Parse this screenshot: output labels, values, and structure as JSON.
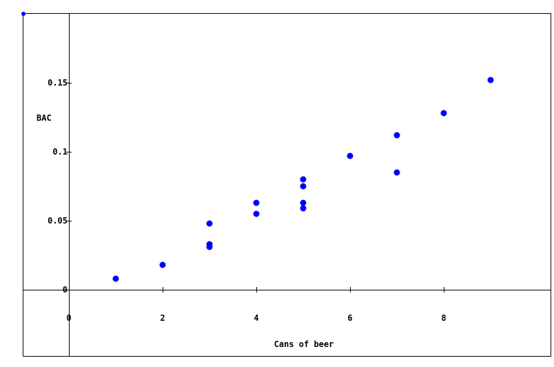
{
  "chart_data": {
    "type": "scatter",
    "title": "",
    "xlabel": "Cans of beer",
    "ylabel": "BAC",
    "xlim": [
      -1,
      10
    ],
    "ylim": [
      -0.03,
      0.2
    ],
    "x_ticks": [
      0,
      2,
      4,
      6,
      8
    ],
    "x_tick_labels": [
      "0",
      "2",
      "4",
      "6",
      "8"
    ],
    "y_ticks": [
      0,
      0.05,
      0.1,
      0.15
    ],
    "y_tick_labels": [
      "0",
      "0.05",
      "0.1",
      "0.15"
    ],
    "grid": false,
    "point_color": "#0000ff",
    "series": [
      {
        "x": [
          1,
          2,
          3,
          3,
          3,
          4,
          4,
          5,
          5,
          5,
          5,
          6,
          7,
          7,
          8,
          9
        ],
        "y": [
          0.008,
          0.018,
          0.031,
          0.033,
          0.048,
          0.055,
          0.063,
          0.059,
          0.063,
          0.075,
          0.08,
          0.097,
          0.085,
          0.112,
          0.128,
          0.152
        ]
      }
    ]
  }
}
